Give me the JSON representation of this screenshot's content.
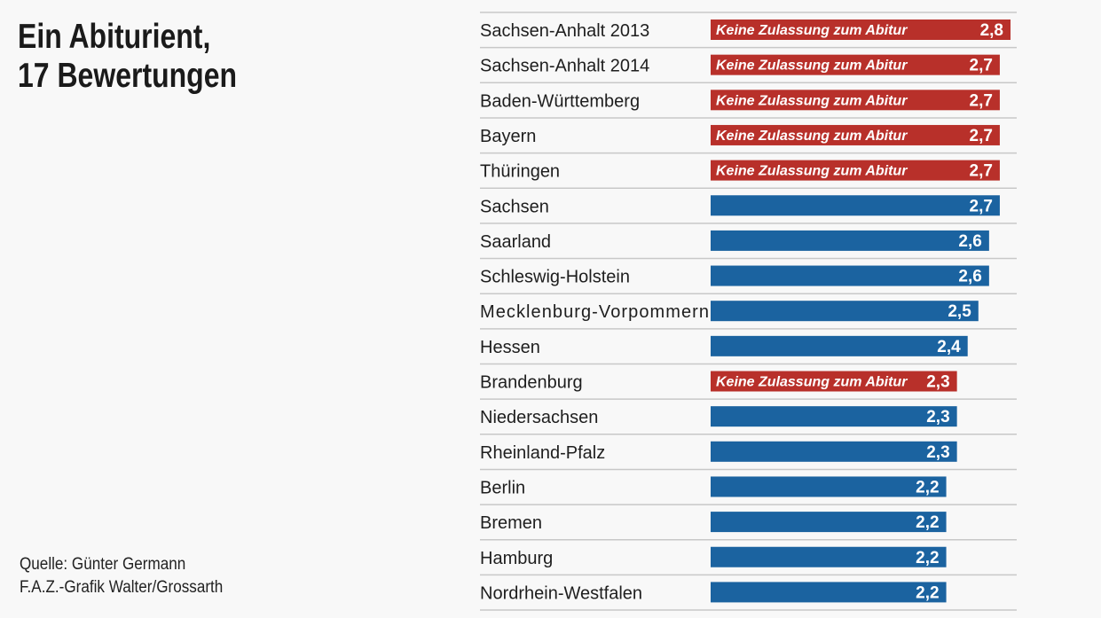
{
  "chart_data": {
    "type": "bar",
    "orientation": "horizontal",
    "title": "Ein Abiturient, 17 Bewertungen",
    "title_lines": [
      "Ein Abiturient,",
      "17 Bewertungen"
    ],
    "source": "Quelle: Günter Germann",
    "credit": "F.A.Z.-Grafik Walter/Grossarth",
    "note_label": "Keine Zulassung zum Abitur",
    "colors": {
      "failed": "#b8302a",
      "passed": "#1b63a0"
    },
    "categories": [
      "Sachsen-Anhalt 2013",
      "Sachsen-Anhalt 2014",
      "Baden-Württemberg",
      "Bayern",
      "Thüringen",
      "Sachsen",
      "Saarland",
      "Schleswig-Holstein",
      "Mecklenburg-Vorpommern",
      "Hessen",
      "Brandenburg",
      "Niedersachsen",
      "Rheinland-Pfalz",
      "Berlin",
      "Bremen",
      "Hamburg",
      "Nordrhein-Westfalen"
    ],
    "values": [
      2.8,
      2.7,
      2.7,
      2.7,
      2.7,
      2.7,
      2.6,
      2.6,
      2.5,
      2.4,
      2.3,
      2.3,
      2.3,
      2.2,
      2.2,
      2.2,
      2.2
    ],
    "value_labels": [
      "2,8",
      "2,7",
      "2,7",
      "2,7",
      "2,7",
      "2,7",
      "2,6",
      "2,6",
      "2,5",
      "2,4",
      "2,3",
      "2,3",
      "2,3",
      "2,2",
      "2,2",
      "2,2",
      "2,2"
    ],
    "no_admission": [
      true,
      true,
      true,
      true,
      true,
      false,
      false,
      false,
      false,
      false,
      true,
      false,
      false,
      false,
      false,
      false,
      false
    ]
  }
}
